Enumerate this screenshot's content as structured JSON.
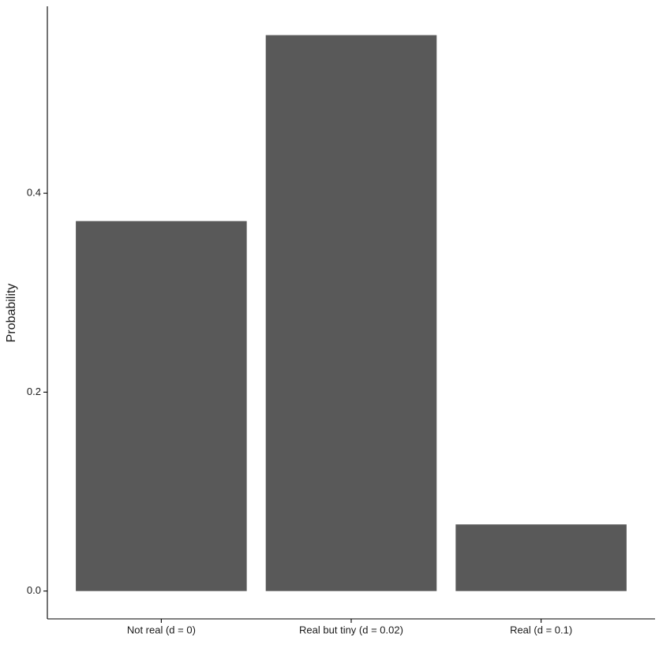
{
  "chart_data": {
    "type": "bar",
    "y_label": "Probability",
    "categories": [
      "Not real (d = 0)",
      "Real but tiny (d = 0.02)",
      "Real (d = 0.1)"
    ],
    "values": [
      0.372,
      0.559,
      0.067
    ],
    "color": "#595959",
    "ylim": [
      -0.028,
      0.588
    ],
    "yticks": [
      {
        "value": 0,
        "label": "0.0"
      },
      0.2,
      0.4
    ],
    "grid": false
  }
}
